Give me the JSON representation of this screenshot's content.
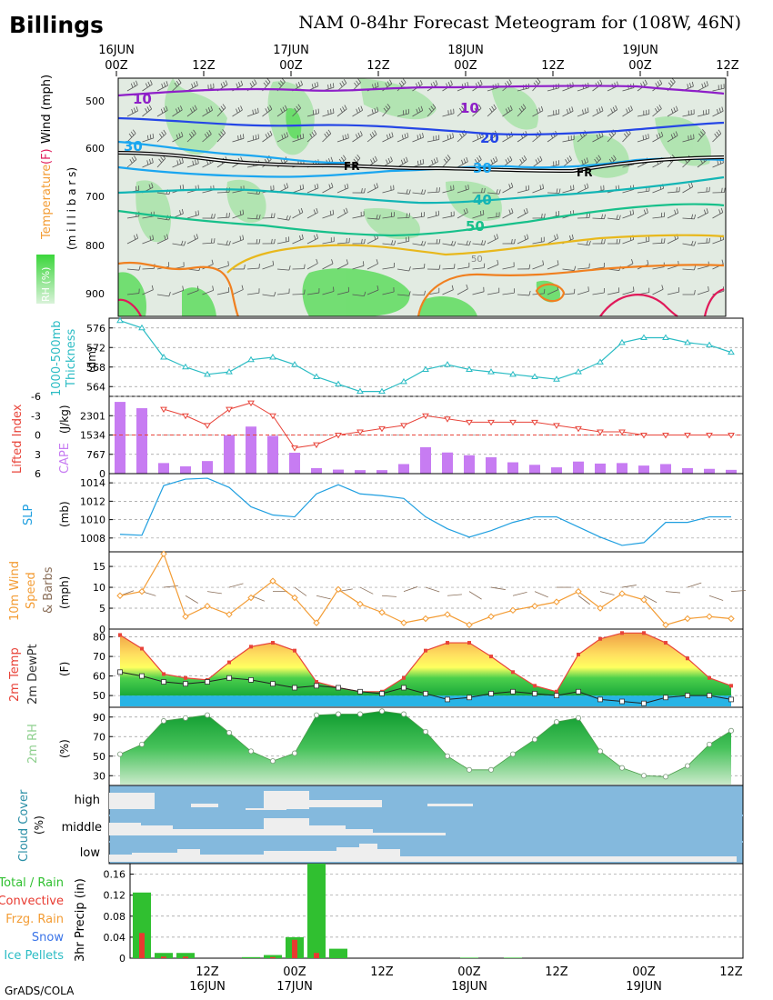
{
  "page": {
    "station": "Billings",
    "title": "NAM 0-84hr Forecast Meteogram for (108W, 46N)",
    "credit": "GrADS/COLA"
  },
  "colors": {
    "temp_line": "#e8443a",
    "dewpt_line": "#222222",
    "thickness": "#2bbcc4",
    "lifted_index": "#e8443a",
    "cape_bar": "#c77cf2",
    "slp": "#1f9fe0",
    "wind_speed": "#f39c34",
    "wind_barb": "#8a6f5a",
    "rh_green": "#2fb34a",
    "cloud_blue": "#84b9dd",
    "cloud_white": "#eeeeee",
    "precip_total": "#30c030",
    "precip_conv": "#e83a30",
    "label_frzg": "#f39c34",
    "label_snow": "#3a74e8",
    "label_ice": "#2bbcc4"
  },
  "time_axis": {
    "top_hours": [
      "00Z",
      "12Z",
      "00Z",
      "12Z",
      "00Z",
      "12Z",
      "00Z",
      "12Z"
    ],
    "top_dates": [
      "16JUN",
      "",
      "17JUN",
      "",
      "18JUN",
      "",
      "19JUN",
      ""
    ],
    "bottom_hours": [
      "12Z",
      "00Z",
      "12Z",
      "00Z",
      "12Z",
      "00Z",
      "12Z"
    ],
    "bottom_dates": [
      "16JUN",
      "17JUN",
      "",
      "18JUN",
      "",
      "19JUN",
      ""
    ]
  },
  "panels": {
    "upper_air": {
      "ylabel_temp": "Temperature",
      "ylabel_f": "(F)",
      "ylabel_wind": "Wind (mph)",
      "ylabel_mb": "(m i l l i b a r s)",
      "rh_label": "RH (%)",
      "levels": [
        "500",
        "600",
        "700",
        "800",
        "900"
      ],
      "contour_labels": [
        "10",
        "10",
        "20",
        "30",
        "30",
        "40",
        "50",
        "50"
      ],
      "freezing_label": "FR"
    },
    "thickness": {
      "label1": "1000-500mb",
      "label2": "Thickness",
      "unit": "(dm)",
      "ticks": [
        "576",
        "572",
        "568",
        "564"
      ]
    },
    "cape_li": {
      "label_li": "Lifted Index",
      "label_cape": "CAPE",
      "unit": "(J/kg)",
      "li_ticks": [
        "-6",
        "-3",
        "0",
        "3",
        "6"
      ],
      "cape_ticks": [
        "2301",
        "1534",
        "767",
        "0"
      ]
    },
    "slp": {
      "label": "SLP",
      "unit": "(mb)",
      "ticks": [
        "1014",
        "1012",
        "1010",
        "1008"
      ]
    },
    "wind10m": {
      "label1": "10m Wind",
      "label2": "Speed",
      "label3": "& Barbs",
      "unit": "(mph)",
      "ticks": [
        "15",
        "10",
        "5",
        "0"
      ]
    },
    "temp2m": {
      "label1": "2m Temp",
      "label2": "2m DewPt",
      "unit": "(F)",
      "ticks": [
        "80",
        "70",
        "60",
        "50"
      ]
    },
    "rh2m": {
      "label": "2m RH",
      "unit": "(%)",
      "ticks": [
        "90",
        "70",
        "50",
        "30"
      ]
    },
    "cloud": {
      "label1": "Cloud Cover",
      "unit": "(%)",
      "layers": [
        "high",
        "middle",
        "low"
      ]
    },
    "precip": {
      "legend": [
        "Total / Rain",
        "Convective",
        "Frzg. Rain",
        "Snow",
        "Ice Pellets"
      ],
      "ylabel": "3hr Precip (in)",
      "ticks": [
        "0.16",
        "0.12",
        "0.08",
        "0.04",
        "0"
      ]
    }
  },
  "chart_data": [
    {
      "type": "line",
      "title": "1000-500mb Thickness",
      "ylabel": "(dm)",
      "x_hours": [
        0,
        3,
        6,
        9,
        12,
        15,
        18,
        21,
        24,
        27,
        30,
        33,
        36,
        39,
        42,
        45,
        48,
        51,
        54,
        57,
        60,
        63,
        66,
        69,
        72,
        75,
        78,
        81,
        84
      ],
      "values": [
        577.5,
        576,
        570,
        568,
        566.5,
        567,
        569.5,
        570,
        568.5,
        566,
        564.5,
        563,
        563,
        565,
        567.5,
        568.5,
        567.5,
        567,
        566.5,
        566,
        565.5,
        567,
        569,
        573,
        574,
        574,
        573,
        572.5,
        571
      ],
      "ylim": [
        562,
        578
      ]
    },
    {
      "type": "line",
      "title": "Lifted Index",
      "x_hours": [
        6,
        9,
        12,
        15,
        18,
        21,
        24,
        27,
        30,
        33,
        36,
        39,
        42,
        45,
        48,
        51,
        54,
        57,
        60,
        63,
        66,
        69,
        72,
        75,
        78,
        81,
        84
      ],
      "values": [
        -4,
        -3,
        -1.5,
        -4,
        -5,
        -3,
        2,
        1.5,
        0,
        -0.5,
        -1,
        -1.5,
        -3,
        -2.5,
        -2,
        -2,
        -2,
        -2,
        -1.5,
        -1,
        -0.5,
        -0.5,
        0,
        0,
        0,
        0,
        0
      ],
      "ylim": [
        6,
        -6
      ]
    },
    {
      "type": "bar",
      "title": "CAPE",
      "ylabel": "(J/kg)",
      "x_hours": [
        0,
        3,
        6,
        9,
        12,
        15,
        18,
        21,
        24,
        27,
        30,
        33,
        36,
        39,
        42,
        45,
        48,
        51,
        54,
        57,
        60,
        63,
        66,
        69,
        72,
        75,
        78,
        81,
        84
      ],
      "values": [
        2850,
        2600,
        420,
        290,
        500,
        1530,
        1870,
        1500,
        830,
        220,
        160,
        140,
        140,
        380,
        1050,
        840,
        730,
        650,
        450,
        350,
        250,
        480,
        400,
        420,
        320,
        380,
        220,
        190,
        150
      ],
      "ylim": [
        0,
        3070
      ]
    },
    {
      "type": "line",
      "title": "SLP",
      "ylabel": "(mb)",
      "x_hours": [
        0,
        3,
        6,
        9,
        12,
        15,
        18,
        21,
        24,
        27,
        30,
        33,
        36,
        39,
        42,
        45,
        48,
        51,
        54,
        57,
        60,
        63,
        66,
        69,
        72,
        75,
        78,
        81,
        84
      ],
      "values": [
        1008.4,
        1008.3,
        1013.7,
        1014.4,
        1014.5,
        1013.5,
        1011.4,
        1010.5,
        1010.3,
        1012.8,
        1013.8,
        1012.8,
        1012.6,
        1012.3,
        1010.3,
        1009,
        1008.1,
        1008.8,
        1009.7,
        1010.3,
        1010.3,
        1009.2,
        1008.1,
        1007.2,
        1007.5,
        1009.7,
        1009.7,
        1010.3,
        1010.3
      ],
      "ylim": [
        1006.5,
        1015
      ]
    },
    {
      "type": "line",
      "title": "10m Wind Speed",
      "ylabel": "(mph)",
      "x_hours": [
        0,
        3,
        6,
        9,
        12,
        15,
        18,
        21,
        24,
        27,
        30,
        33,
        36,
        39,
        42,
        45,
        48,
        51,
        54,
        57,
        60,
        63,
        66,
        69,
        72,
        75,
        78,
        81,
        84
      ],
      "values": [
        8,
        9,
        18,
        3,
        5.5,
        3.5,
        7.5,
        11.5,
        7.5,
        1.5,
        9.5,
        6,
        4,
        1.5,
        2.5,
        3.5,
        1,
        3,
        4.5,
        5.5,
        6.5,
        9,
        5,
        8.5,
        7,
        1,
        2.5,
        3,
        2.5
      ],
      "ylim": [
        0,
        18
      ]
    },
    {
      "type": "area",
      "title": "2m Temp / 2m DewPt",
      "ylabel": "(F)",
      "x_hours": [
        0,
        3,
        6,
        9,
        12,
        15,
        18,
        21,
        24,
        27,
        30,
        33,
        36,
        39,
        42,
        45,
        48,
        51,
        54,
        57,
        60,
        63,
        66,
        69,
        72,
        75,
        78,
        81,
        84
      ],
      "series": [
        {
          "name": "2m Temp",
          "values": [
            81,
            74,
            61,
            59,
            58,
            67,
            75,
            77,
            73,
            57,
            54,
            52,
            52,
            59,
            73,
            77,
            77,
            70,
            62,
            55,
            52,
            71,
            79,
            82,
            82,
            77,
            69,
            59,
            55
          ]
        },
        {
          "name": "2m DewPt",
          "values": [
            62,
            60,
            57,
            56,
            57,
            59,
            58,
            56,
            54,
            55,
            54,
            52,
            51,
            54,
            51,
            48,
            49,
            51,
            52,
            51,
            50,
            52,
            48,
            47,
            46,
            49,
            50,
            50,
            48
          ]
        }
      ],
      "ylim": [
        44,
        84
      ]
    },
    {
      "type": "area",
      "title": "2m RH",
      "ylabel": "(%)",
      "x_hours": [
        0,
        3,
        6,
        9,
        12,
        15,
        18,
        21,
        24,
        27,
        30,
        33,
        36,
        39,
        42,
        45,
        48,
        51,
        54,
        57,
        60,
        63,
        66,
        69,
        72,
        75,
        78,
        81,
        84
      ],
      "values": [
        52,
        62,
        86,
        89,
        92,
        74,
        55,
        45,
        53,
        92,
        93,
        93,
        96,
        93,
        75,
        50,
        36,
        36,
        52,
        67,
        85,
        89,
        55,
        38,
        30,
        29,
        40,
        62,
        76
      ],
      "ylim": [
        20,
        100
      ]
    },
    {
      "type": "bar",
      "title": "3hr Precip",
      "ylabel": "(in)",
      "x_hours": [
        3,
        6,
        9,
        12,
        15,
        18,
        21,
        24,
        27,
        30,
        33,
        36,
        39,
        42,
        45,
        48,
        51,
        54,
        57
      ],
      "series": [
        {
          "name": "Total / Rain",
          "values": [
            0.125,
            0.01,
            0.01,
            0,
            0,
            0.002,
            0.006,
            0.04,
            0.18,
            0.018,
            0,
            0,
            0,
            0,
            0,
            0.001,
            0,
            0.001,
            0
          ]
        },
        {
          "name": "Convective",
          "values": [
            0.048,
            0.003,
            0.003,
            0,
            0,
            0,
            0.002,
            0.035,
            0.01,
            0,
            0,
            0,
            0,
            0,
            0,
            0,
            0,
            0,
            0
          ]
        }
      ],
      "ylim": [
        0,
        0.18
      ]
    }
  ]
}
